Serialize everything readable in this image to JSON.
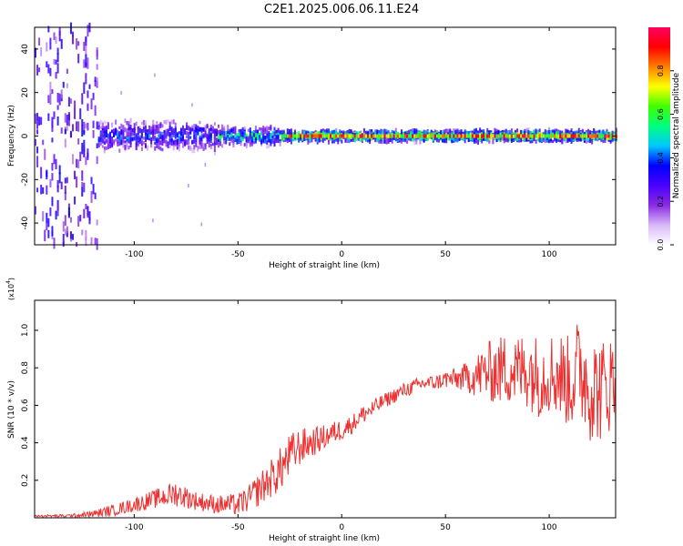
{
  "title": "C2E1.2025.006.06.11.E24",
  "colors": {
    "signal_line": "#ee3030",
    "axis": "#000000",
    "background": "#ffffff"
  },
  "chart_data": [
    {
      "type": "heatmap",
      "xlabel": "Height of straight line (km)",
      "ylabel": "Frequency (Hz)",
      "xlim": [
        -148,
        132
      ],
      "ylim": [
        -50,
        50
      ],
      "x_ticks": [
        -100,
        -50,
        0,
        50,
        100
      ],
      "y_ticks": [
        -40,
        -20,
        0,
        20,
        40
      ],
      "colorbar": {
        "label": "Normalized spectral amplitude",
        "range": [
          0,
          1
        ],
        "ticks": [
          0.0,
          0.2,
          0.4,
          0.6,
          0.8
        ],
        "tick_labels": [
          "0.0",
          "0.2",
          "0.4",
          "0.6",
          "0.8"
        ],
        "colormap": [
          "#ffffff",
          "#d8b8f8",
          "#8a2be2",
          "#4b00ff",
          "#0000ff",
          "#00c8ff",
          "#00ff80",
          "#40ff00",
          "#ffff00",
          "#ff8000",
          "#ff0000",
          "#ff0060"
        ]
      },
      "description_of_content": []
    },
    {
      "type": "line",
      "xlabel": "Height of straight line (km)",
      "ylabel": "SNR (10 * v/v)",
      "y_multiplier": "(x10^4)",
      "y_multiplier_base": "(x10",
      "y_multiplier_exp": "4",
      "y_multiplier_close": ")",
      "xlim": [
        -148,
        132
      ],
      "ylim": [
        0,
        1.16
      ],
      "x_ticks": [
        -100,
        -50,
        0,
        50,
        100
      ],
      "y_ticks": [
        0.2,
        0.4,
        0.6,
        0.8,
        1.0
      ],
      "y_tick_labels": [
        "0.2",
        "0.4",
        "0.6",
        "0.8",
        "1.0"
      ],
      "series": [
        {
          "x": [
            -148,
            -130,
            -120,
            -110,
            -100,
            -90,
            -80,
            -70,
            -60,
            -50,
            -45,
            -40,
            -35,
            -30,
            -25,
            -20,
            -15,
            -10,
            -5,
            0,
            5,
            10,
            15,
            20,
            25,
            30,
            35,
            40,
            45,
            50,
            55,
            60,
            65,
            70,
            75,
            80,
            85,
            90,
            95,
            100,
            105,
            110,
            115,
            120,
            125,
            132
          ],
          "values": [
            0.01,
            0.01,
            0.02,
            0.04,
            0.07,
            0.1,
            0.13,
            0.09,
            0.07,
            0.07,
            0.1,
            0.15,
            0.2,
            0.25,
            0.33,
            0.38,
            0.4,
            0.42,
            0.45,
            0.47,
            0.5,
            0.55,
            0.58,
            0.62,
            0.65,
            0.68,
            0.7,
            0.72,
            0.72,
            0.74,
            0.74,
            0.75,
            0.76,
            0.78,
            0.78,
            0.8,
            0.78,
            0.8,
            0.75,
            0.78,
            0.76,
            0.72,
            0.8,
            0.7,
            0.68,
            0.74
          ],
          "noise_amplitude": [
            0.005,
            0.01,
            0.02,
            0.03,
            0.04,
            0.05,
            0.07,
            0.05,
            0.05,
            0.06,
            0.07,
            0.09,
            0.1,
            0.12,
            0.12,
            0.1,
            0.08,
            0.07,
            0.06,
            0.06,
            0.05,
            0.05,
            0.05,
            0.04,
            0.04,
            0.04,
            0.04,
            0.04,
            0.04,
            0.05,
            0.06,
            0.08,
            0.12,
            0.16,
            0.18,
            0.2,
            0.2,
            0.22,
            0.22,
            0.22,
            0.24,
            0.25,
            0.3,
            0.3,
            0.28,
            0.25
          ]
        }
      ]
    }
  ]
}
